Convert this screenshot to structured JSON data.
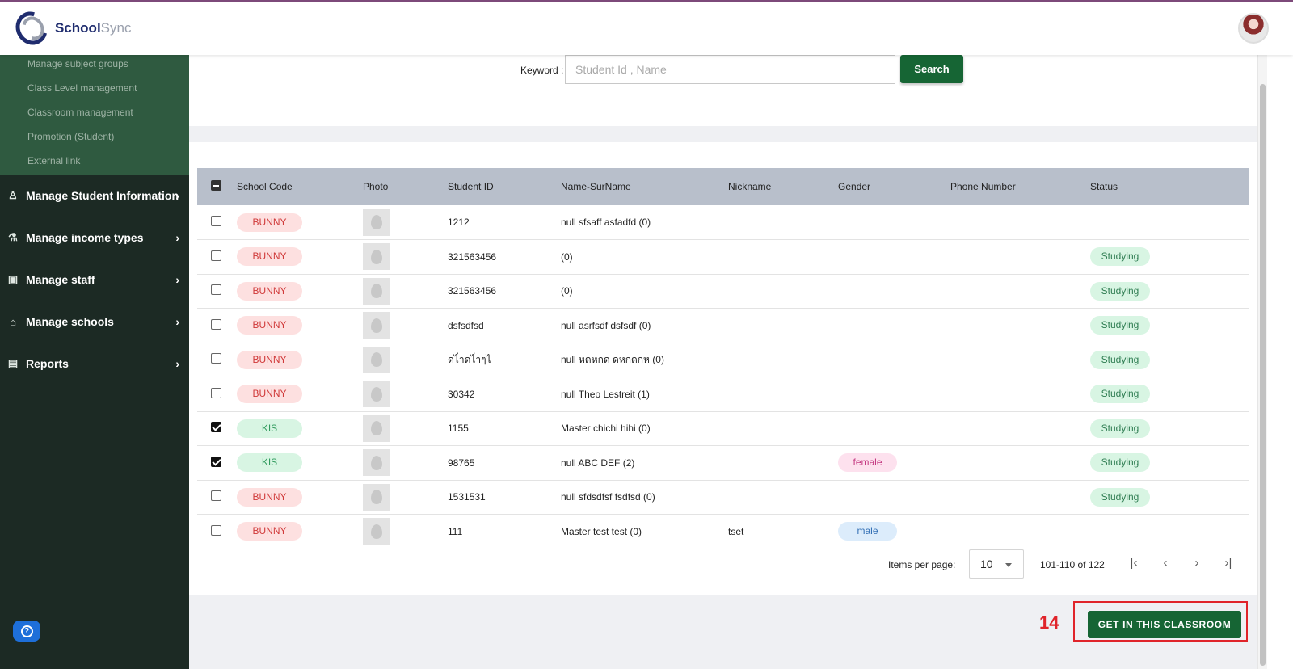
{
  "app": {
    "logo_main": "School",
    "logo_accent": "Sync"
  },
  "sidebar": {
    "submenu": [
      "Manage subject groups",
      "Class Level management",
      "Classroom management",
      "Promotion (Student)",
      "External link"
    ],
    "items": [
      {
        "label": "Manage Student Information",
        "icon": "graduation-icon"
      },
      {
        "label": "Manage income types",
        "icon": "flask-icon"
      },
      {
        "label": "Manage staff",
        "icon": "id-card-icon"
      },
      {
        "label": "Manage schools",
        "icon": "school-icon"
      },
      {
        "label": "Reports",
        "icon": "clipboard-icon"
      }
    ]
  },
  "search": {
    "label": "Keyword :",
    "placeholder": "Student Id , Name",
    "value": "",
    "button": "Search"
  },
  "table": {
    "columns": [
      "School Code",
      "Photo",
      "Student ID",
      "Name-SurName",
      "Nickname",
      "Gender",
      "Phone Number",
      "Status"
    ],
    "rows": [
      {
        "checked": false,
        "school": "BUNNY",
        "id": "1212",
        "name": "null sfsaff asfadfd (0)",
        "nickname": "",
        "gender": "",
        "phone": "",
        "status": ""
      },
      {
        "checked": false,
        "school": "BUNNY",
        "id": "321563456",
        "name": "(0)",
        "nickname": "",
        "gender": "",
        "phone": "",
        "status": "Studying"
      },
      {
        "checked": false,
        "school": "BUNNY",
        "id": "321563456",
        "name": "(0)",
        "nickname": "",
        "gender": "",
        "phone": "",
        "status": "Studying"
      },
      {
        "checked": false,
        "school": "BUNNY",
        "id": "dsfsdfsd",
        "name": "null asrfsdf dsfsdf (0)",
        "nickname": "",
        "gender": "",
        "phone": "",
        "status": "Studying"
      },
      {
        "checked": false,
        "school": "BUNNY",
        "id": "ดไ่าดไ่าๆไ",
        "name": "null หดหกด ดหกดกห (0)",
        "nickname": "",
        "gender": "",
        "phone": "",
        "status": "Studying"
      },
      {
        "checked": false,
        "school": "BUNNY",
        "id": "30342",
        "name": "null Theo Lestreit (1)",
        "nickname": "",
        "gender": "",
        "phone": "",
        "status": "Studying"
      },
      {
        "checked": true,
        "school": "KIS",
        "id": "1155",
        "name": "Master chichi hihi (0)",
        "nickname": "",
        "gender": "",
        "phone": "",
        "status": "Studying"
      },
      {
        "checked": true,
        "school": "KIS",
        "id": "98765",
        "name": "null ABC DEF (2)",
        "nickname": "",
        "gender": "female",
        "phone": "",
        "status": "Studying"
      },
      {
        "checked": false,
        "school": "BUNNY",
        "id": "1531531",
        "name": "null sfdsdfsf fsdfsd (0)",
        "nickname": "",
        "gender": "",
        "phone": "",
        "status": "Studying"
      },
      {
        "checked": false,
        "school": "BUNNY",
        "id": "111",
        "name": "Master test test (0)",
        "nickname": "tset",
        "gender": "male",
        "phone": "",
        "status": ""
      }
    ]
  },
  "paginator": {
    "label": "Items per page:",
    "page_size": "10",
    "range": "101-110 of 122"
  },
  "footer": {
    "step": "14",
    "button": "GET IN THIS CLASSROOM"
  },
  "colors": {
    "brand_green": "#166534",
    "sidebar_bg": "#1c2a24",
    "header_row": "#b8bfcb",
    "highlight": "#e0242a"
  }
}
